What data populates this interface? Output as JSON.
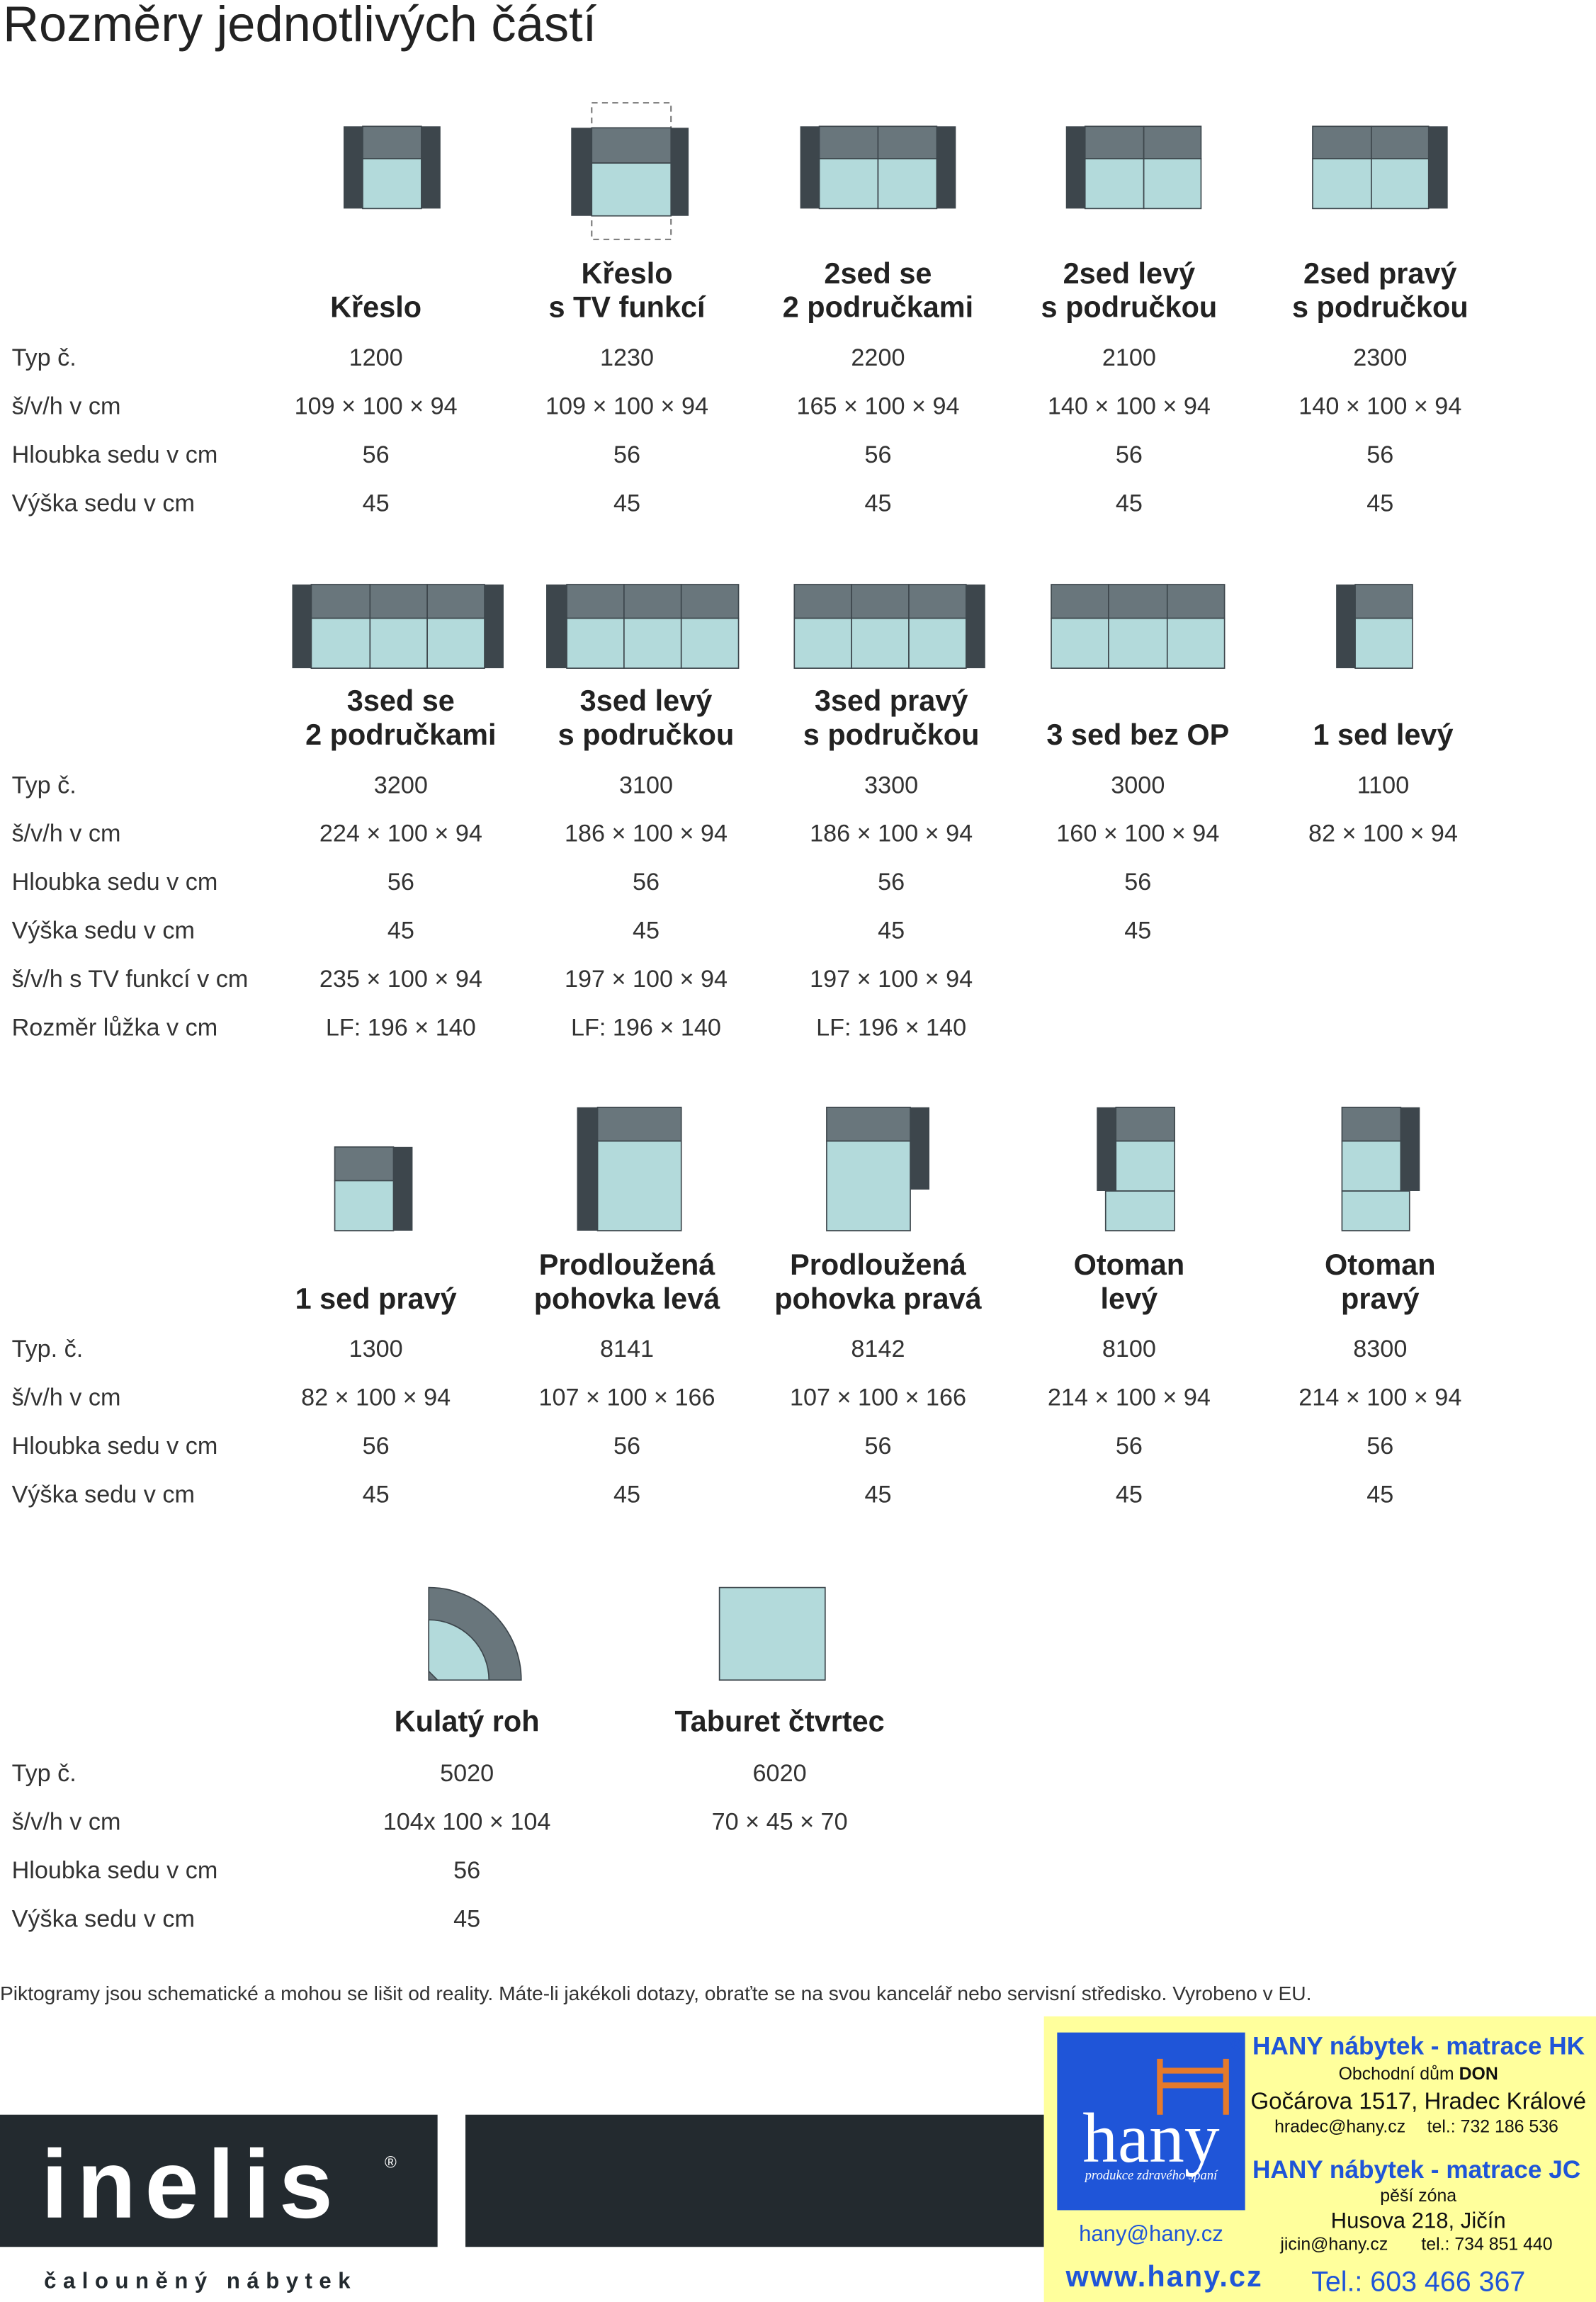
{
  "title": "Rozměry jednotlivých částí",
  "sections": [
    {
      "row_labels": [
        "Typ č.",
        "š/v/h v cm",
        "Hloubka sedu v cm",
        "Výška sedu v cm"
      ],
      "items": [
        {
          "name": [
            "Křeslo"
          ],
          "values": [
            "1200",
            "109 × 100 × 94",
            "56",
            "45"
          ]
        },
        {
          "name": [
            "Křeslo",
            "s TV funkcí"
          ],
          "values": [
            "1230",
            "109 × 100 × 94",
            "56",
            "45"
          ]
        },
        {
          "name": [
            "2sed se",
            "2 područkami"
          ],
          "values": [
            "2200",
            "165 × 100 × 94",
            "56",
            "45"
          ]
        },
        {
          "name": [
            "2sed levý",
            "s područkou"
          ],
          "values": [
            "2100",
            "140 × 100 × 94",
            "56",
            "45"
          ]
        },
        {
          "name": [
            "2sed pravý",
            "s područkou"
          ],
          "values": [
            "2300",
            "140 × 100 × 94",
            "56",
            "45"
          ]
        }
      ]
    },
    {
      "row_labels": [
        "Typ č.",
        "š/v/h v cm",
        "Hloubka sedu v cm",
        "Výška sedu v cm",
        "š/v/h s TV funkcí v cm",
        "Rozměr lůžka v cm"
      ],
      "items": [
        {
          "name": [
            "3sed se",
            "2 područkami"
          ],
          "values": [
            "3200",
            "224 × 100 × 94",
            "56",
            "45",
            "235 × 100 × 94",
            "LF: 196 × 140"
          ]
        },
        {
          "name": [
            "3sed levý",
            "s područkou"
          ],
          "values": [
            "3100",
            "186 × 100 × 94",
            "56",
            "45",
            "197 × 100 × 94",
            "LF: 196 × 140"
          ]
        },
        {
          "name": [
            "3sed pravý",
            "s područkou"
          ],
          "values": [
            "3300",
            "186 × 100 × 94",
            "56",
            "45",
            "197 × 100 × 94",
            "LF: 196 × 140"
          ]
        },
        {
          "name": [
            "3 sed bez OP"
          ],
          "values": [
            "3000",
            "160 × 100 × 94",
            "56",
            "45",
            null,
            null
          ]
        },
        {
          "name": [
            "1 sed levý"
          ],
          "values": [
            "1100",
            "82 × 100 × 94",
            null,
            null,
            null,
            null
          ]
        }
      ]
    },
    {
      "row_labels": [
        "Typ. č.",
        "š/v/h v cm",
        "Hloubka sedu v cm",
        "Výška sedu v cm"
      ],
      "items": [
        {
          "name": [
            "1 sed pravý"
          ],
          "values": [
            "1300",
            "82 × 100 × 94",
            "56",
            "45"
          ]
        },
        {
          "name": [
            "Prodloužená",
            "pohovka levá"
          ],
          "values": [
            "8141",
            "107 × 100 × 166",
            "56",
            "45"
          ]
        },
        {
          "name": [
            "Prodloužená",
            "pohovka pravá"
          ],
          "values": [
            "8142",
            "107 × 100 × 166",
            "56",
            "45"
          ]
        },
        {
          "name": [
            "Otoman",
            "levý"
          ],
          "values": [
            "8100",
            "214 × 100 × 94",
            "56",
            "45"
          ]
        },
        {
          "name": [
            "Otoman",
            "pravý"
          ],
          "values": [
            "8300",
            "214 × 100 × 94",
            "56",
            "45"
          ]
        }
      ]
    },
    {
      "row_labels": [
        "Typ č.",
        "š/v/h v cm",
        "Hloubka sedu v cm",
        "Výška sedu v cm"
      ],
      "items": [
        {
          "name": [
            "Kulatý roh"
          ],
          "values": [
            "5020",
            "104x 100 × 104",
            "56",
            "45"
          ]
        },
        {
          "name": [
            "Taburet čtvrtec"
          ],
          "values": [
            "6020",
            "70 × 45 × 70",
            null,
            null
          ]
        }
      ]
    }
  ],
  "note": "Piktogramy jsou schematické a mohou se lišit od reality. Máte-li jakékoli dotazy, obraťte se na svou kancelář nebo servisní středisko. Vyrobeno v EU.",
  "brand": {
    "logo": "inelis",
    "registered": "®",
    "tagline": "čalouněný nábytek"
  },
  "dealer": {
    "logo": "hany",
    "logo_tagline": "produkce zdravého spaní",
    "registered": "®",
    "hk_title": "HANY nábytek - matrace HK",
    "hk_place_prefix": "Obchodní dům",
    "hk_place_name": "DON",
    "hk_address": "Gočárova 1517, Hradec Králové",
    "hk_email": "hradec@hany.cz",
    "hk_phone": "tel.: 732 186 536",
    "jc_title": "HANY nábytek - matrace JC",
    "jc_place": "pěší zóna",
    "jc_address": "Husova 218, Jičín",
    "jc_email": "jicin@hany.cz",
    "jc_phone": "tel.: 734 851 440",
    "email": "hany@hany.cz",
    "web": "www.hany.cz",
    "phone": "Tel.: 603 466 367"
  }
}
